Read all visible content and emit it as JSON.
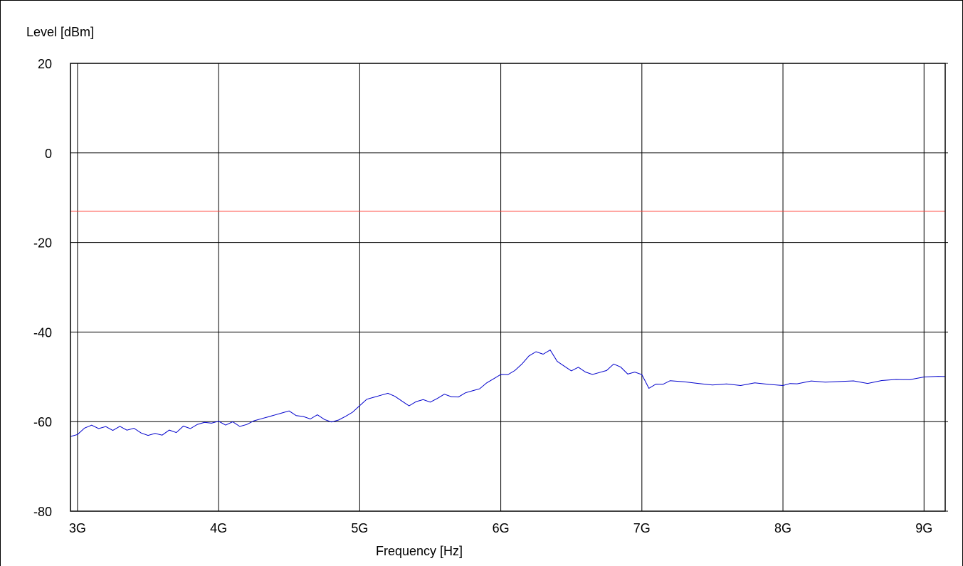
{
  "chart_data": {
    "type": "line",
    "title": "",
    "xlabel": "Frequency [Hz]",
    "ylabel": "Level [dBm]",
    "xlim": [
      2.95,
      9.15
    ],
    "ylim": [
      -80,
      20
    ],
    "x_unit": "GHz",
    "x_ticks": [
      3,
      4,
      5,
      6,
      7,
      8,
      9
    ],
    "x_tick_labels": [
      "3G",
      "4G",
      "5G",
      "6G",
      "7G",
      "8G",
      "9G"
    ],
    "y_ticks": [
      20,
      0,
      -20,
      -40,
      -60,
      -80
    ],
    "y_tick_labels": [
      "20",
      "0",
      "-20",
      "-40",
      "-60",
      "-80"
    ],
    "grid": true,
    "colors": {
      "trace": "#0000cc",
      "limit": "#ff3b30",
      "grid": "#000000"
    },
    "limit_line": {
      "y": -13
    },
    "series": [
      {
        "x": [
          2.95,
          3.0,
          3.05,
          3.1,
          3.15,
          3.2,
          3.25,
          3.3,
          3.35,
          3.4,
          3.45,
          3.5,
          3.55,
          3.6,
          3.65,
          3.7,
          3.75,
          3.8,
          3.85,
          3.9,
          3.95,
          4.0,
          4.05,
          4.1,
          4.15,
          4.2,
          4.25,
          4.3,
          4.35,
          4.4,
          4.45,
          4.5,
          4.55,
          4.6,
          4.65,
          4.7,
          4.75,
          4.8,
          4.85,
          4.9,
          4.95,
          5.0,
          5.05,
          5.1,
          5.15,
          5.2,
          5.25,
          5.3,
          5.35,
          5.4,
          5.45,
          5.5,
          5.55,
          5.6,
          5.65,
          5.7,
          5.75,
          5.8,
          5.85,
          5.9,
          5.95,
          6.0,
          6.05,
          6.1,
          6.15,
          6.2,
          6.25,
          6.3,
          6.35,
          6.4,
          6.45,
          6.5,
          6.55,
          6.6,
          6.65,
          6.7,
          6.75,
          6.8,
          6.85,
          6.9,
          6.95,
          7.0,
          7.05,
          7.1,
          7.15,
          7.2,
          7.3,
          7.4,
          7.5,
          7.6,
          7.7,
          7.8,
          7.9,
          8.0,
          8.05,
          8.1,
          8.2,
          8.3,
          8.4,
          8.5,
          8.6,
          8.7,
          8.8,
          8.9,
          9.0,
          9.1,
          9.15
        ],
        "y": [
          -63.5,
          -63.0,
          -61.5,
          -60.8,
          -61.5,
          -61.0,
          -61.8,
          -61.2,
          -62.0,
          -61.5,
          -62.5,
          -63.0,
          -62.5,
          -63.2,
          -62.0,
          -62.5,
          -61.0,
          -61.5,
          -60.5,
          -60.0,
          -60.5,
          -60.0,
          -60.8,
          -60.0,
          -61.0,
          -60.5,
          -60.0,
          -59.5,
          -59.0,
          -58.5,
          -58.0,
          -57.5,
          -58.5,
          -59.0,
          -59.5,
          -58.5,
          -59.5,
          -60.0,
          -59.5,
          -59.0,
          -58.0,
          -56.5,
          -55.0,
          -54.5,
          -54.0,
          -53.5,
          -54.5,
          -55.5,
          -56.5,
          -55.5,
          -55.0,
          -55.5,
          -55.0,
          -54.0,
          -54.5,
          -54.5,
          -53.5,
          -53.0,
          -52.5,
          -51.5,
          -50.5,
          -49.5,
          -49.5,
          -48.5,
          -47.0,
          -45.5,
          -44.5,
          -45.0,
          -44.0,
          -46.5,
          -47.5,
          -48.5,
          -48.0,
          -49.0,
          -49.5,
          -49.0,
          -48.5,
          -47.0,
          -48.0,
          -49.5,
          -49.0,
          -49.5,
          -52.5,
          -51.5,
          -51.5,
          -51.0,
          -51.2,
          -51.5,
          -51.8,
          -51.5,
          -51.8,
          -51.5,
          -51.8,
          -52.0,
          -51.5,
          -51.5,
          -50.8,
          -51.0,
          -51.2,
          -51.0,
          -51.5,
          -50.8,
          -50.5,
          -50.5,
          -50.2,
          -50.0,
          -50.0
        ]
      }
    ]
  }
}
